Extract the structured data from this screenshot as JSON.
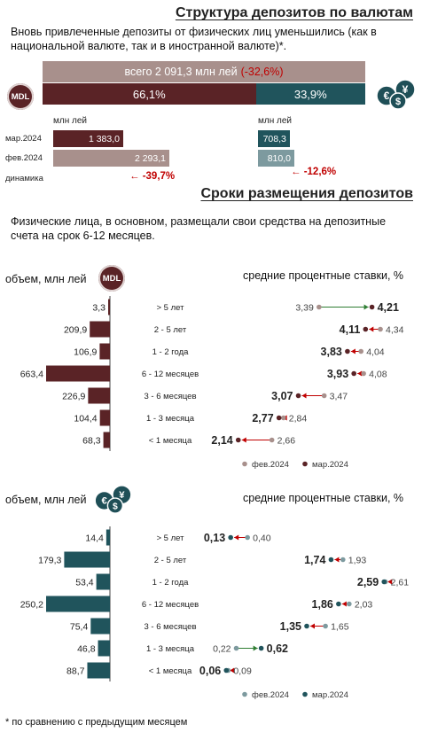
{
  "structure": {
    "title": "Структура депозитов по валютам",
    "subtitle": "Вновь привлеченные депозиты от физических лиц уменьшились (как в национальной валюте, так и в иностранной валюте)*.",
    "total_label": "всего 2 091,3 млн лей",
    "total_change": "(-32,6%)",
    "mdl_share": "66,1%",
    "fx_share": "33,9%",
    "mdl_share_value": 66.1,
    "fx_share_value": 33.9,
    "mdl_badge": "MDL",
    "fx_icon": "euro-dollar-yen-coins-icon",
    "unit_left": "млн лей",
    "unit_right": "млн лей",
    "rows": [
      {
        "label": "мар.2024",
        "mdl": 1383.0,
        "mdl_text": "1 383,0",
        "fx": 708.3,
        "fx_text": "708,3"
      },
      {
        "label": "фев.2024",
        "mdl": 2293.1,
        "mdl_text": "2 293,1",
        "fx": 810.0,
        "fx_text": "810,0"
      }
    ],
    "dynamics_label": "динамика",
    "mdl_dynamics": "-39,7%",
    "fx_dynamics": "-12,6%",
    "colors": {
      "mdl_dark": "#5a2326",
      "mdl_light": "#a8908c",
      "fx_dark": "#20545c",
      "fx_light": "#7d9a9f",
      "negative": "#c00000"
    }
  },
  "terms": {
    "title": "Сроки размещения депозитов",
    "text": "Физические лица, в основном, размещали свои средства на депозитные счета на срок 6-12 месяцев.",
    "footnote": "* по сравнению с предыдущим месяцем"
  },
  "chart_data": [
    {
      "type": "bar",
      "currency": "MDL",
      "volume_label": "объем, млн лей",
      "rates_label": "средние процентные ставки, %",
      "categories": [
        "> 5 лет",
        "2 - 5 лет",
        "1 - 2 года",
        "6 - 12 месяцев",
        "3 - 6 месяцев",
        "1 - 3 месяца",
        "< 1 месяца"
      ],
      "volumes": [
        3.3,
        209.9,
        106.9,
        663.4,
        226.9,
        104.4,
        68.3
      ],
      "volume_labels": [
        "3,3",
        "209,9",
        "106,9",
        "663,4",
        "226,9",
        "104,4",
        "68,3"
      ],
      "series": [
        {
          "name": "фев.2024",
          "values": [
            3.39,
            4.34,
            4.04,
            4.08,
            3.47,
            2.84,
            2.66
          ],
          "labels": [
            "3,39",
            "4,34",
            "4,04",
            "4,08",
            "3,47",
            "2,84",
            "2,66"
          ]
        },
        {
          "name": "мар.2024",
          "values": [
            4.21,
            4.11,
            3.83,
            3.93,
            3.07,
            2.77,
            2.14
          ],
          "labels": [
            "4,21",
            "4,11",
            "3,83",
            "3,93",
            "3,07",
            "2,77",
            "2,14"
          ]
        }
      ],
      "rate_range": [
        1.8,
        4.6
      ],
      "colors": {
        "bar": "#5a2326",
        "feb": "#a8908c",
        "mar": "#5a2326",
        "up": "#2e7d32",
        "down": "#c00000"
      }
    },
    {
      "type": "bar",
      "currency": "FX",
      "volume_label": "объем, млн лей",
      "rates_label": "средние процентные ставки, %",
      "categories": [
        "> 5 лет",
        "2 - 5 лет",
        "1 - 2 года",
        "6 - 12 месяцев",
        "3 - 6 месяцев",
        "1 - 3 месяца",
        "< 1 месяца"
      ],
      "volumes": [
        14.4,
        179.3,
        53.4,
        250.2,
        75.4,
        46.8,
        88.7
      ],
      "volume_labels": [
        "14,4",
        "179,3",
        "53,4",
        "250,2",
        "75,4",
        "46,8",
        "88,7"
      ],
      "series": [
        {
          "name": "фев.2024",
          "values": [
            0.4,
            1.93,
            2.61,
            2.03,
            1.65,
            0.22,
            0.09
          ],
          "labels": [
            "0,40",
            "1,93",
            "2,61",
            "2,03",
            "1,65",
            "0,22",
            "0,09"
          ]
        },
        {
          "name": "мар.2024",
          "values": [
            0.13,
            1.74,
            2.59,
            1.86,
            1.35,
            0.62,
            0.06
          ],
          "labels": [
            "0,13",
            "1,74",
            "2,59",
            "1,86",
            "1,35",
            "0,62",
            "0,06"
          ]
        }
      ],
      "rate_range": [
        -0.1,
        2.8
      ],
      "colors": {
        "bar": "#20545c",
        "feb": "#7d9a9f",
        "mar": "#20545c",
        "up": "#2e7d32",
        "down": "#c00000"
      }
    }
  ]
}
